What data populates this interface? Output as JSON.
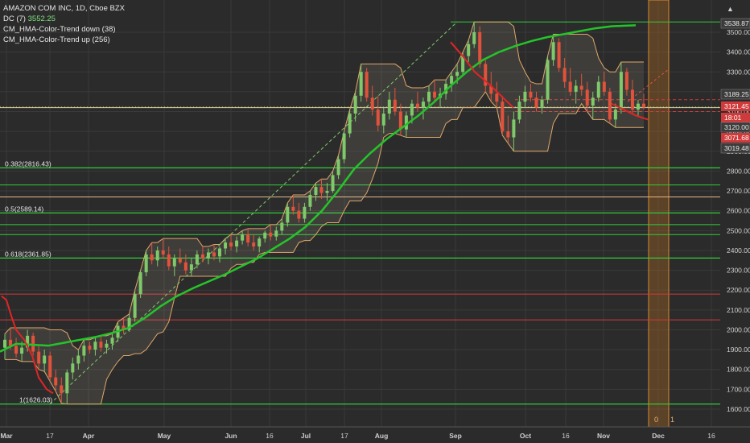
{
  "legend": {
    "title": "AMAZON COM INC, 1D, Cboe BZX",
    "dc_label": "DC (7)",
    "dc_value": "3552.25",
    "hma_down": "CM_HMA-Color-Trend down (38)",
    "hma_up": "CM_HMA-Color-Trend up (256)"
  },
  "colors": {
    "background": "#2b2b2b",
    "grid": "#3a3a3a",
    "up_candle": "#7fc96a",
    "down_candle": "#e2523b",
    "fib_line": "#2fcc3a",
    "resistance_red": "#d13a3a",
    "donchian": "#e0a86a",
    "hma_up": "#25c42a",
    "hma_down": "#e02525",
    "highlight_band": "#b86d1c"
  },
  "chart_data": {
    "type": "candlestick",
    "price_axis": {
      "ylim": [
        1560,
        3580
      ],
      "ticks": [
        1600,
        1700,
        1800,
        1900,
        2000,
        2100,
        2200,
        2300,
        2400,
        2500,
        2600,
        2700,
        2800,
        2900,
        3000,
        3100,
        3200,
        3300,
        3400,
        3500
      ]
    },
    "time_axis": {
      "ticks": [
        "Mar",
        "17",
        "Apr",
        "May",
        "Jun",
        "16",
        "Jul",
        "17",
        "Aug",
        "Sep",
        "Oct",
        "16",
        "Nov",
        "Dec",
        "16"
      ]
    },
    "fib_levels": [
      {
        "ratio": "0.382",
        "price": 2816.43,
        "label": "0.382(2816.43)"
      },
      {
        "ratio": "0.5",
        "price": 2589.14,
        "label": "0.5(2589.14)"
      },
      {
        "ratio": "0.618",
        "price": 2361.85,
        "label": "0.618(2361.85)"
      },
      {
        "ratio": "1",
        "price": 1626.03,
        "label": "1(1626.03)"
      }
    ],
    "horizontal_lines": [
      {
        "color": "green",
        "price": 3552
      },
      {
        "color": "green",
        "price": 3121
      },
      {
        "color": "green",
        "price": 2730
      },
      {
        "color": "green",
        "price": 2530
      },
      {
        "color": "green",
        "price": 2480
      },
      {
        "color": "tan",
        "price": 3120
      },
      {
        "color": "tan",
        "price": 2670
      },
      {
        "color": "red",
        "price": 2180
      },
      {
        "color": "red",
        "price": 2050
      },
      {
        "color": "red-dashed",
        "price": 3160
      },
      {
        "color": "red-dashed",
        "price": 3100
      }
    ],
    "price_labels": [
      {
        "text": "3538.87",
        "price": 3538.87,
        "style": "white"
      },
      {
        "text": "3189.25",
        "price": 3189.25,
        "style": "white"
      },
      {
        "text": "3121.45",
        "price": 3121.45,
        "style": "red"
      },
      {
        "text": "18:01",
        "price": 3070,
        "style": "red"
      },
      {
        "text": "3120.00",
        "price": 3040,
        "style": "white"
      },
      {
        "text": "3071.68",
        "price": 2988,
        "style": "red"
      },
      {
        "text": "3019.48",
        "price": 2942,
        "style": "white"
      }
    ],
    "band_labels": [
      "0",
      "1"
    ],
    "hma_slow": [
      [
        0,
        1890
      ],
      [
        20,
        1930
      ],
      [
        40,
        1925
      ],
      [
        60,
        1920
      ],
      [
        80,
        1935
      ],
      [
        100,
        1950
      ],
      [
        120,
        1965
      ],
      [
        140,
        1985
      ],
      [
        160,
        2010
      ],
      [
        180,
        2060
      ],
      [
        200,
        2120
      ],
      [
        220,
        2170
      ],
      [
        240,
        2210
      ],
      [
        260,
        2245
      ],
      [
        280,
        2280
      ],
      [
        300,
        2320
      ],
      [
        320,
        2360
      ],
      [
        340,
        2410
      ],
      [
        360,
        2460
      ],
      [
        380,
        2520
      ],
      [
        400,
        2600
      ],
      [
        420,
        2700
      ],
      [
        440,
        2810
      ],
      [
        460,
        2890
      ],
      [
        480,
        2960
      ],
      [
        500,
        3020
      ],
      [
        520,
        3080
      ],
      [
        540,
        3150
      ],
      [
        560,
        3230
      ],
      [
        580,
        3300
      ],
      [
        600,
        3360
      ],
      [
        620,
        3400
      ],
      [
        640,
        3430
      ],
      [
        660,
        3455
      ],
      [
        680,
        3475
      ],
      [
        700,
        3490
      ],
      [
        720,
        3505
      ],
      [
        740,
        3520
      ],
      [
        760,
        3530
      ],
      [
        790,
        3535
      ]
    ],
    "hma_fast": [
      [
        2,
        2170
      ],
      [
        8,
        2150
      ],
      [
        14,
        2070
      ],
      [
        20,
        2000
      ],
      [
        30,
        1950
      ],
      [
        40,
        1870
      ],
      [
        48,
        1760
      ],
      [
        58,
        1700
      ],
      [
        66,
        1680
      ],
      [
        560,
        3450
      ],
      [
        575,
        3380
      ],
      [
        590,
        3300
      ],
      [
        610,
        3230
      ],
      [
        625,
        3170
      ],
      [
        638,
        3120
      ],
      [
        760,
        3140
      ],
      [
        775,
        3110
      ],
      [
        790,
        3080
      ],
      [
        805,
        3060
      ]
    ],
    "candles": [
      {
        "o": 1910,
        "h": 1980,
        "l": 1850,
        "c": 1950
      },
      {
        "o": 1950,
        "h": 2010,
        "l": 1900,
        "c": 1920
      },
      {
        "o": 1920,
        "h": 1960,
        "l": 1860,
        "c": 1880
      },
      {
        "o": 1880,
        "h": 1940,
        "l": 1840,
        "c": 1910
      },
      {
        "o": 1910,
        "h": 2000,
        "l": 1890,
        "c": 1970
      },
      {
        "o": 1970,
        "h": 1985,
        "l": 1870,
        "c": 1890
      },
      {
        "o": 1890,
        "h": 1920,
        "l": 1800,
        "c": 1830
      },
      {
        "o": 1830,
        "h": 1900,
        "l": 1790,
        "c": 1870
      },
      {
        "o": 1870,
        "h": 1890,
        "l": 1740,
        "c": 1760
      },
      {
        "o": 1760,
        "h": 1800,
        "l": 1690,
        "c": 1720
      },
      {
        "o": 1720,
        "h": 1760,
        "l": 1630,
        "c": 1680
      },
      {
        "o": 1680,
        "h": 1800,
        "l": 1626,
        "c": 1785
      },
      {
        "o": 1785,
        "h": 1860,
        "l": 1750,
        "c": 1830
      },
      {
        "o": 1830,
        "h": 1900,
        "l": 1800,
        "c": 1870
      },
      {
        "o": 1870,
        "h": 1950,
        "l": 1840,
        "c": 1920
      },
      {
        "o": 1920,
        "h": 1940,
        "l": 1880,
        "c": 1900
      },
      {
        "o": 1900,
        "h": 1960,
        "l": 1870,
        "c": 1940
      },
      {
        "o": 1940,
        "h": 1970,
        "l": 1890,
        "c": 1910
      },
      {
        "o": 1910,
        "h": 1950,
        "l": 1880,
        "c": 1930
      },
      {
        "o": 1930,
        "h": 1980,
        "l": 1900,
        "c": 1960
      },
      {
        "o": 1960,
        "h": 2040,
        "l": 1940,
        "c": 2020
      },
      {
        "o": 2020,
        "h": 2060,
        "l": 1980,
        "c": 2000
      },
      {
        "o": 2000,
        "h": 2080,
        "l": 1990,
        "c": 2060
      },
      {
        "o": 2060,
        "h": 2200,
        "l": 2040,
        "c": 2180
      },
      {
        "o": 2180,
        "h": 2300,
        "l": 2160,
        "c": 2290
      },
      {
        "o": 2290,
        "h": 2400,
        "l": 2270,
        "c": 2380
      },
      {
        "o": 2380,
        "h": 2440,
        "l": 2330,
        "c": 2350
      },
      {
        "o": 2350,
        "h": 2420,
        "l": 2320,
        "c": 2400
      },
      {
        "o": 2400,
        "h": 2460,
        "l": 2360,
        "c": 2380
      },
      {
        "o": 2380,
        "h": 2420,
        "l": 2300,
        "c": 2320
      },
      {
        "o": 2320,
        "h": 2380,
        "l": 2270,
        "c": 2360
      },
      {
        "o": 2360,
        "h": 2410,
        "l": 2330,
        "c": 2340
      },
      {
        "o": 2340,
        "h": 2380,
        "l": 2280,
        "c": 2300
      },
      {
        "o": 2300,
        "h": 2360,
        "l": 2270,
        "c": 2330
      },
      {
        "o": 2330,
        "h": 2400,
        "l": 2310,
        "c": 2380
      },
      {
        "o": 2380,
        "h": 2420,
        "l": 2340,
        "c": 2360
      },
      {
        "o": 2360,
        "h": 2410,
        "l": 2330,
        "c": 2390
      },
      {
        "o": 2390,
        "h": 2430,
        "l": 2350,
        "c": 2370
      },
      {
        "o": 2370,
        "h": 2420,
        "l": 2340,
        "c": 2410
      },
      {
        "o": 2410,
        "h": 2460,
        "l": 2380,
        "c": 2440
      },
      {
        "o": 2440,
        "h": 2480,
        "l": 2400,
        "c": 2420
      },
      {
        "o": 2420,
        "h": 2470,
        "l": 2390,
        "c": 2450
      },
      {
        "o": 2450,
        "h": 2500,
        "l": 2430,
        "c": 2480
      },
      {
        "o": 2480,
        "h": 2510,
        "l": 2420,
        "c": 2440
      },
      {
        "o": 2440,
        "h": 2480,
        "l": 2400,
        "c": 2420
      },
      {
        "o": 2420,
        "h": 2470,
        "l": 2390,
        "c": 2460
      },
      {
        "o": 2460,
        "h": 2500,
        "l": 2440,
        "c": 2490
      },
      {
        "o": 2490,
        "h": 2530,
        "l": 2450,
        "c": 2470
      },
      {
        "o": 2470,
        "h": 2520,
        "l": 2450,
        "c": 2500
      },
      {
        "o": 2500,
        "h": 2560,
        "l": 2480,
        "c": 2540
      },
      {
        "o": 2540,
        "h": 2640,
        "l": 2520,
        "c": 2620
      },
      {
        "o": 2620,
        "h": 2680,
        "l": 2580,
        "c": 2600
      },
      {
        "o": 2600,
        "h": 2640,
        "l": 2540,
        "c": 2560
      },
      {
        "o": 2560,
        "h": 2640,
        "l": 2540,
        "c": 2620
      },
      {
        "o": 2620,
        "h": 2700,
        "l": 2600,
        "c": 2680
      },
      {
        "o": 2680,
        "h": 2740,
        "l": 2650,
        "c": 2720
      },
      {
        "o": 2720,
        "h": 2760,
        "l": 2660,
        "c": 2690
      },
      {
        "o": 2690,
        "h": 2740,
        "l": 2650,
        "c": 2700
      },
      {
        "o": 2700,
        "h": 2800,
        "l": 2690,
        "c": 2780
      },
      {
        "o": 2780,
        "h": 2880,
        "l": 2760,
        "c": 2860
      },
      {
        "o": 2860,
        "h": 3000,
        "l": 2840,
        "c": 2990
      },
      {
        "o": 2990,
        "h": 3110,
        "l": 2970,
        "c": 3090
      },
      {
        "o": 3090,
        "h": 3200,
        "l": 3050,
        "c": 3180
      },
      {
        "o": 3180,
        "h": 3340,
        "l": 3150,
        "c": 3300
      },
      {
        "o": 3300,
        "h": 3320,
        "l": 3150,
        "c": 3170
      },
      {
        "o": 3170,
        "h": 3230,
        "l": 3080,
        "c": 3110
      },
      {
        "o": 3110,
        "h": 3180,
        "l": 3000,
        "c": 3030
      },
      {
        "o": 3030,
        "h": 3120,
        "l": 2990,
        "c": 3090
      },
      {
        "o": 3090,
        "h": 3200,
        "l": 3060,
        "c": 3160
      },
      {
        "o": 3160,
        "h": 3220,
        "l": 3080,
        "c": 3100
      },
      {
        "o": 3100,
        "h": 3140,
        "l": 2980,
        "c": 3010
      },
      {
        "o": 3010,
        "h": 3100,
        "l": 2970,
        "c": 3080
      },
      {
        "o": 3080,
        "h": 3160,
        "l": 3040,
        "c": 3140
      },
      {
        "o": 3140,
        "h": 3200,
        "l": 3100,
        "c": 3120
      },
      {
        "o": 3120,
        "h": 3170,
        "l": 3060,
        "c": 3150
      },
      {
        "o": 3150,
        "h": 3230,
        "l": 3130,
        "c": 3200
      },
      {
        "o": 3200,
        "h": 3260,
        "l": 3150,
        "c": 3170
      },
      {
        "o": 3170,
        "h": 3220,
        "l": 3120,
        "c": 3190
      },
      {
        "o": 3190,
        "h": 3260,
        "l": 3160,
        "c": 3240
      },
      {
        "o": 3240,
        "h": 3300,
        "l": 3200,
        "c": 3280
      },
      {
        "o": 3280,
        "h": 3340,
        "l": 3240,
        "c": 3300
      },
      {
        "o": 3300,
        "h": 3400,
        "l": 3280,
        "c": 3380
      },
      {
        "o": 3380,
        "h": 3460,
        "l": 3350,
        "c": 3440
      },
      {
        "o": 3440,
        "h": 3552,
        "l": 3420,
        "c": 3500
      },
      {
        "o": 3500,
        "h": 3530,
        "l": 3320,
        "c": 3340
      },
      {
        "o": 3340,
        "h": 3360,
        "l": 3200,
        "c": 3230
      },
      {
        "o": 3230,
        "h": 3300,
        "l": 3150,
        "c": 3190
      },
      {
        "o": 3190,
        "h": 3250,
        "l": 3120,
        "c": 3150
      },
      {
        "o": 3150,
        "h": 3180,
        "l": 2980,
        "c": 3000
      },
      {
        "o": 3000,
        "h": 3080,
        "l": 2940,
        "c": 2970
      },
      {
        "o": 2970,
        "h": 3100,
        "l": 2900,
        "c": 3060
      },
      {
        "o": 3060,
        "h": 3180,
        "l": 3040,
        "c": 3150
      },
      {
        "o": 3150,
        "h": 3230,
        "l": 3120,
        "c": 3200
      },
      {
        "o": 3200,
        "h": 3240,
        "l": 3150,
        "c": 3170
      },
      {
        "o": 3170,
        "h": 3200,
        "l": 3100,
        "c": 3120
      },
      {
        "o": 3120,
        "h": 3180,
        "l": 3090,
        "c": 3160
      },
      {
        "o": 3160,
        "h": 3380,
        "l": 3140,
        "c": 3360
      },
      {
        "o": 3360,
        "h": 3490,
        "l": 3330,
        "c": 3450
      },
      {
        "o": 3450,
        "h": 3470,
        "l": 3300,
        "c": 3320
      },
      {
        "o": 3320,
        "h": 3370,
        "l": 3220,
        "c": 3250
      },
      {
        "o": 3250,
        "h": 3320,
        "l": 3180,
        "c": 3200
      },
      {
        "o": 3200,
        "h": 3260,
        "l": 3140,
        "c": 3230
      },
      {
        "o": 3230,
        "h": 3290,
        "l": 3180,
        "c": 3210
      },
      {
        "o": 3210,
        "h": 3250,
        "l": 3100,
        "c": 3130
      },
      {
        "o": 3130,
        "h": 3200,
        "l": 3060,
        "c": 3170
      },
      {
        "o": 3170,
        "h": 3280,
        "l": 3150,
        "c": 3250
      },
      {
        "o": 3250,
        "h": 3300,
        "l": 3180,
        "c": 3200
      },
      {
        "o": 3200,
        "h": 3220,
        "l": 3040,
        "c": 3060
      },
      {
        "o": 3060,
        "h": 3140,
        "l": 3020,
        "c": 3110
      },
      {
        "o": 3110,
        "h": 3350,
        "l": 3090,
        "c": 3300
      },
      {
        "o": 3300,
        "h": 3320,
        "l": 3180,
        "c": 3210
      },
      {
        "o": 3210,
        "h": 3260,
        "l": 3090,
        "c": 3110
      },
      {
        "o": 3110,
        "h": 3160,
        "l": 3080,
        "c": 3140
      },
      {
        "o": 3140,
        "h": 3190,
        "l": 3110,
        "c": 3121
      }
    ]
  }
}
